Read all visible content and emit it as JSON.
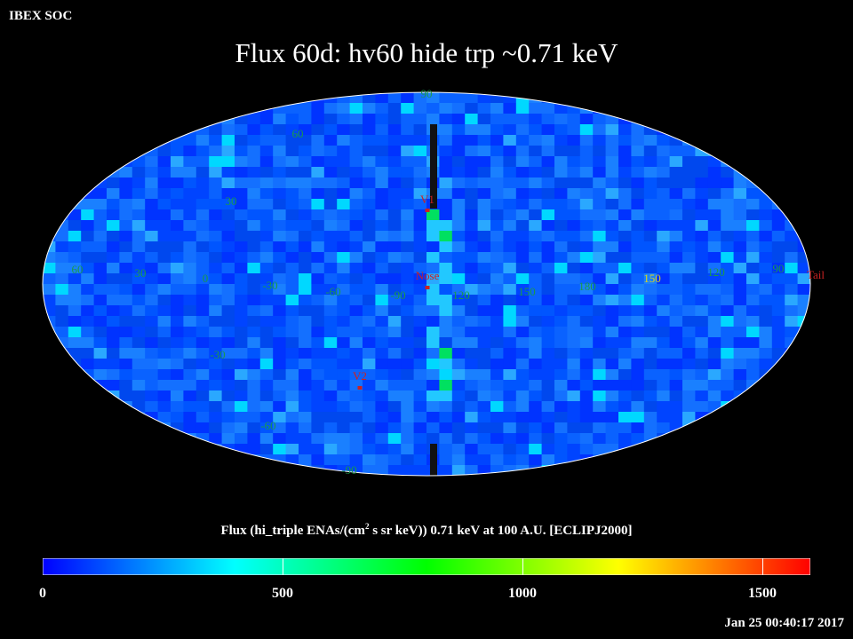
{
  "header": {
    "org": "IBEX SOC",
    "title": "Flux   60d: hv60 hide trp ~0.71 keV"
  },
  "footer": {
    "timestamp": "Jan 25 00:40:17 2017"
  },
  "colorbar": {
    "title_pre": "Flux (hi_triple ENAs/(cm",
    "title_sup": "2",
    "title_post": " s sr keV))  0.71 keV at 100 A.U. [ECLIPJ2000]",
    "range": [
      0,
      1600
    ],
    "ticks": [
      {
        "value": 0,
        "label": "0"
      },
      {
        "value": 500,
        "label": "500"
      },
      {
        "value": 1000,
        "label": "1000"
      },
      {
        "value": 1500,
        "label": "1500"
      }
    ],
    "gradient": [
      "#0000ff",
      "#00ffff",
      "#00ff00",
      "#ffff00",
      "#ff0000"
    ]
  },
  "map": {
    "projection": "Mollweide",
    "grid": {
      "longitude_labels": [
        {
          "value": "60",
          "color": "green"
        },
        {
          "value": "30",
          "color": "green"
        },
        {
          "value": "0",
          "color": "green"
        },
        {
          "value": "-30",
          "color": "green"
        },
        {
          "value": "-60",
          "color": "green"
        },
        {
          "value": "-90",
          "color": "green"
        },
        {
          "value": "120",
          "color": "green"
        },
        {
          "value": "150",
          "color": "green"
        },
        {
          "value": "180",
          "color": "green"
        },
        {
          "value": "150",
          "color": "yellow"
        },
        {
          "value": "120",
          "color": "green"
        },
        {
          "value": "90",
          "color": "green"
        }
      ],
      "latitude_labels": [
        "90",
        "60",
        "30",
        "-30",
        "-60",
        "-90"
      ]
    },
    "markers": [
      {
        "label": "V1",
        "color": "#cc2222"
      },
      {
        "label": "Nose",
        "color": "#cc2222"
      },
      {
        "label": "V2",
        "color": "#cc2222"
      },
      {
        "label": "Tail",
        "color": "#cc2222"
      }
    ]
  }
}
